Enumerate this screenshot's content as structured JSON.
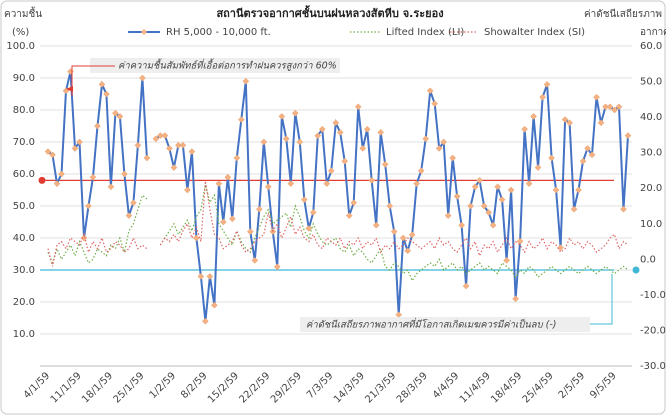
{
  "chart_data": {
    "type": "line",
    "title": "สถานีตรวจอากาศชั้นบนฝนหลวงสัตหีบ จ.ระยอง",
    "y_label": [
      "ความชื้น",
      "(%)"
    ],
    "y2_label": [
      "ค่าดัชนีเสถียรภาพ",
      "อากาศ"
    ],
    "categories": [
      "4/1/59",
      null,
      null,
      null,
      null,
      null,
      null,
      "11/1/59",
      null,
      null,
      null,
      null,
      null,
      null,
      "18/1/59",
      null,
      null,
      null,
      null,
      null,
      null,
      "25/1/59",
      null,
      null,
      null,
      null,
      null,
      null,
      "1/2/59",
      null,
      null,
      null,
      null,
      null,
      null,
      "8/2/59",
      null,
      null,
      null,
      null,
      null,
      null,
      "15/2/59",
      null,
      null,
      null,
      null,
      null,
      null,
      "22/2/59",
      null,
      null,
      null,
      null,
      null,
      null,
      "29/2/59",
      null,
      null,
      null,
      null,
      null,
      null,
      "7/3/59",
      null,
      null,
      null,
      null,
      null,
      null,
      "14/3/59",
      null,
      null,
      null,
      null,
      null,
      null,
      "21/3/59",
      null,
      null,
      null,
      null,
      null,
      null,
      "28/3/59",
      null,
      null,
      null,
      null,
      null,
      null,
      "4/4/59",
      null,
      null,
      null,
      null,
      null,
      null,
      "11/4/59",
      null,
      null,
      null,
      null,
      null,
      null,
      "18/4/59",
      null,
      null,
      null,
      null,
      null,
      null,
      "25/4/59",
      null,
      null,
      null,
      null,
      null,
      null,
      "2/5/59",
      null,
      null,
      null,
      null,
      null,
      null,
      "9/5/59",
      null,
      null,
      null
    ],
    "series": [
      {
        "name": "RH 5,000 - 10,000 ft.",
        "color": "#4472c4",
        "marker_color": "#f4b183",
        "axis": "y",
        "values": [
          67,
          66,
          57,
          60,
          86,
          92,
          68,
          70,
          40,
          50,
          59,
          75,
          88,
          85,
          56,
          79,
          78,
          60,
          47,
          51,
          69,
          90,
          65,
          null,
          71,
          72,
          72,
          68,
          62,
          69,
          69,
          55,
          67,
          40,
          28,
          14,
          28,
          19,
          57,
          45,
          59,
          46,
          65,
          77,
          89,
          42,
          33,
          49,
          70,
          56,
          42,
          31,
          78,
          71,
          57,
          79,
          70,
          52,
          43,
          48,
          72,
          74,
          57,
          61,
          76,
          73,
          64,
          47,
          51,
          81,
          68,
          74,
          58,
          44,
          73,
          63,
          50,
          42,
          16,
          40,
          36,
          41,
          57,
          61,
          71,
          86,
          82,
          68,
          70,
          47,
          65,
          53,
          44,
          25,
          50,
          56,
          58,
          50,
          48,
          44,
          56,
          52,
          33,
          55,
          21,
          39,
          74,
          57,
          78,
          62,
          84,
          88,
          65,
          55,
          37,
          77,
          76,
          49,
          55,
          64,
          68,
          66,
          84,
          76,
          81,
          81,
          80,
          81,
          49,
          72
        ]
      },
      {
        "name": "Lifted Index (LI)",
        "color": "#70ad47",
        "axis": "y2",
        "values": [
          2,
          -1,
          3,
          0,
          2,
          4,
          1,
          5,
          2,
          -1,
          0,
          3,
          2,
          1,
          4,
          3,
          6,
          2,
          8,
          10,
          14,
          18,
          17,
          null,
          null,
          4,
          6,
          8,
          10,
          7,
          9,
          11,
          8,
          12,
          14,
          21,
          16,
          18,
          10,
          8,
          6,
          4,
          8,
          5,
          3,
          2,
          6,
          9,
          12,
          14,
          10,
          11,
          12,
          13,
          9,
          15,
          12,
          8,
          6,
          10,
          7,
          5,
          4,
          5,
          6,
          3,
          2,
          4,
          1,
          3,
          2,
          0,
          -1,
          1,
          3,
          -2,
          -3,
          -1,
          -2,
          -4,
          -3,
          -6,
          -4,
          -3,
          -2,
          -1,
          -2,
          0,
          -3,
          -2,
          -1,
          -3,
          -2,
          -4,
          -3,
          -2,
          -1,
          -3,
          -2,
          -3,
          -4,
          -1,
          -2,
          -3,
          -5,
          -3,
          -4,
          -2,
          -3,
          -5,
          -4,
          -3,
          -2,
          -3,
          -4,
          -3,
          -2,
          -3,
          -4,
          -3,
          -2,
          -3,
          -4,
          -3,
          -2,
          -3,
          -4,
          -3,
          -2,
          -3
        ]
      },
      {
        "name": "Showalter Index (SI)",
        "color": "#e06666",
        "axis": "y2",
        "values": [
          3,
          -2,
          4,
          5,
          3,
          6,
          5,
          4,
          7,
          2,
          5,
          3,
          6,
          2,
          3,
          5,
          4,
          2,
          3,
          6,
          3,
          4,
          3,
          null,
          null,
          4,
          6,
          5,
          7,
          5,
          8,
          10,
          6,
          9,
          5,
          22,
          14,
          7,
          6,
          3,
          4,
          5,
          8,
          4,
          2,
          3,
          5,
          6,
          7,
          13,
          8,
          10,
          6,
          9,
          12,
          7,
          9,
          6,
          5,
          7,
          4,
          3,
          6,
          5,
          4,
          6,
          3,
          5,
          4,
          6,
          3,
          5,
          4,
          6,
          2,
          4,
          3,
          5,
          3,
          4,
          6,
          5,
          4,
          3,
          4,
          5,
          3,
          6,
          4,
          5,
          3,
          2,
          4,
          6,
          3,
          5,
          1,
          4,
          3,
          5,
          2,
          4,
          6,
          3,
          5,
          4,
          2,
          5,
          3,
          4,
          6,
          3,
          5,
          4,
          2,
          3,
          6,
          4,
          5,
          3,
          5,
          4,
          2,
          3,
          4,
          6,
          7,
          3,
          5,
          4
        ]
      }
    ],
    "ylim": [
      0,
      100
    ],
    "yticks": [
      {
        "value": 10,
        "label": "10.0"
      },
      {
        "value": 20,
        "label": "20.0"
      },
      {
        "value": 30,
        "label": "30.0"
      },
      {
        "value": 40,
        "label": "40.0"
      },
      {
        "value": 50,
        "label": "50.0"
      },
      {
        "value": 60,
        "label": "60.0"
      },
      {
        "value": 70,
        "label": "70.0"
      },
      {
        "value": 80,
        "label": "80.0"
      },
      {
        "value": 90,
        "label": "90.0"
      },
      {
        "value": 100,
        "label": "100.0"
      }
    ],
    "y2lim": [
      -30,
      60
    ],
    "y2ticks": [
      {
        "value": -30,
        "label": "-30.0"
      },
      {
        "value": -20,
        "label": "-20.0"
      },
      {
        "value": -10,
        "label": "-10.0"
      },
      {
        "value": 0,
        "label": "0.0"
      },
      {
        "value": 10,
        "label": "10.0"
      },
      {
        "value": 20,
        "label": "20.0"
      },
      {
        "value": 30,
        "label": "30.0"
      },
      {
        "value": 40,
        "label": "40.0"
      },
      {
        "value": 50,
        "label": "50.0"
      },
      {
        "value": 60,
        "label": "60.0"
      }
    ],
    "grid": true,
    "annotations": [
      {
        "text": "ค่าความชื้นสัมพัทธ์ที่เอื้อต่อการทำฝนควรสูงกว่า 60%",
        "value": 58,
        "axis": "y",
        "color": "#e03c31"
      },
      {
        "text": "ค่าดัชนีเสถียรภาพอากาศที่มีโอกาสเกิดเมฆควรมีค่าเป็นลบ (-)",
        "value": -3,
        "axis": "y2",
        "color": "#3fb8d6"
      }
    ]
  }
}
